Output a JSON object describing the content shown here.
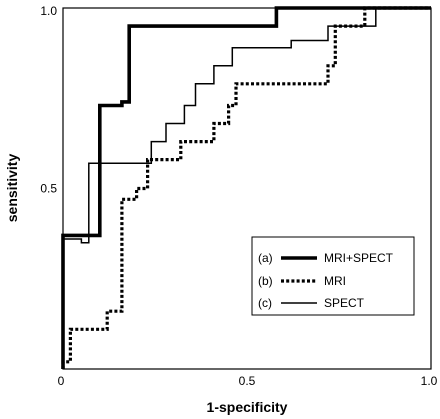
{
  "chart_data": {
    "type": "line",
    "title": "",
    "xlabel": "1-specificity",
    "ylabel": "sensitivity",
    "xlim": [
      0,
      1
    ],
    "ylim": [
      0,
      1
    ],
    "grid": false,
    "legend_position": "bottom-right",
    "x_ticks": [
      {
        "value": 0,
        "label": "0"
      },
      {
        "value": 0.5,
        "label": "0.5"
      },
      {
        "value": 1,
        "label": "1.0"
      }
    ],
    "y_ticks": [
      {
        "value": 0.5,
        "label": "0.5"
      },
      {
        "value": 1,
        "label": "1.0"
      }
    ],
    "series": [
      {
        "tag": "(a)",
        "name": "MRI+SPECT",
        "style": "solid-thick",
        "x": [
          0,
          0,
          0.1,
          0.1,
          0.16,
          0.16,
          0.18,
          0.18,
          0.58,
          0.58,
          1.0
        ],
        "y": [
          0,
          0.37,
          0.37,
          0.73,
          0.73,
          0.74,
          0.74,
          0.95,
          0.95,
          1.0,
          1.0
        ]
      },
      {
        "tag": "(b)",
        "name": "MRI",
        "style": "dotted",
        "x": [
          0,
          0,
          0.02,
          0.02,
          0.12,
          0.12,
          0.16,
          0.16,
          0.2,
          0.2,
          0.23,
          0.23,
          0.32,
          0.32,
          0.41,
          0.41,
          0.45,
          0.45,
          0.47,
          0.47,
          0.72,
          0.72,
          0.74,
          0.74,
          0.82,
          0.82,
          1.0
        ],
        "y": [
          0,
          0.02,
          0.02,
          0.11,
          0.11,
          0.16,
          0.16,
          0.47,
          0.47,
          0.5,
          0.5,
          0.58,
          0.58,
          0.63,
          0.63,
          0.68,
          0.68,
          0.73,
          0.73,
          0.79,
          0.79,
          0.84,
          0.84,
          0.95,
          0.95,
          1.0,
          1.0
        ]
      },
      {
        "tag": "(c)",
        "name": "SPECT",
        "style": "solid-thin",
        "x": [
          0,
          0,
          0.05,
          0.05,
          0.07,
          0.07,
          0.24,
          0.24,
          0.28,
          0.28,
          0.33,
          0.33,
          0.36,
          0.36,
          0.41,
          0.41,
          0.46,
          0.46,
          0.62,
          0.62,
          0.72,
          0.72,
          0.85,
          0.85,
          1.0
        ],
        "y": [
          0,
          0.36,
          0.36,
          0.35,
          0.35,
          0.57,
          0.57,
          0.63,
          0.63,
          0.68,
          0.68,
          0.73,
          0.73,
          0.79,
          0.79,
          0.84,
          0.84,
          0.89,
          0.89,
          0.91,
          0.91,
          0.95,
          0.95,
          1.0,
          1.0
        ]
      }
    ]
  }
}
